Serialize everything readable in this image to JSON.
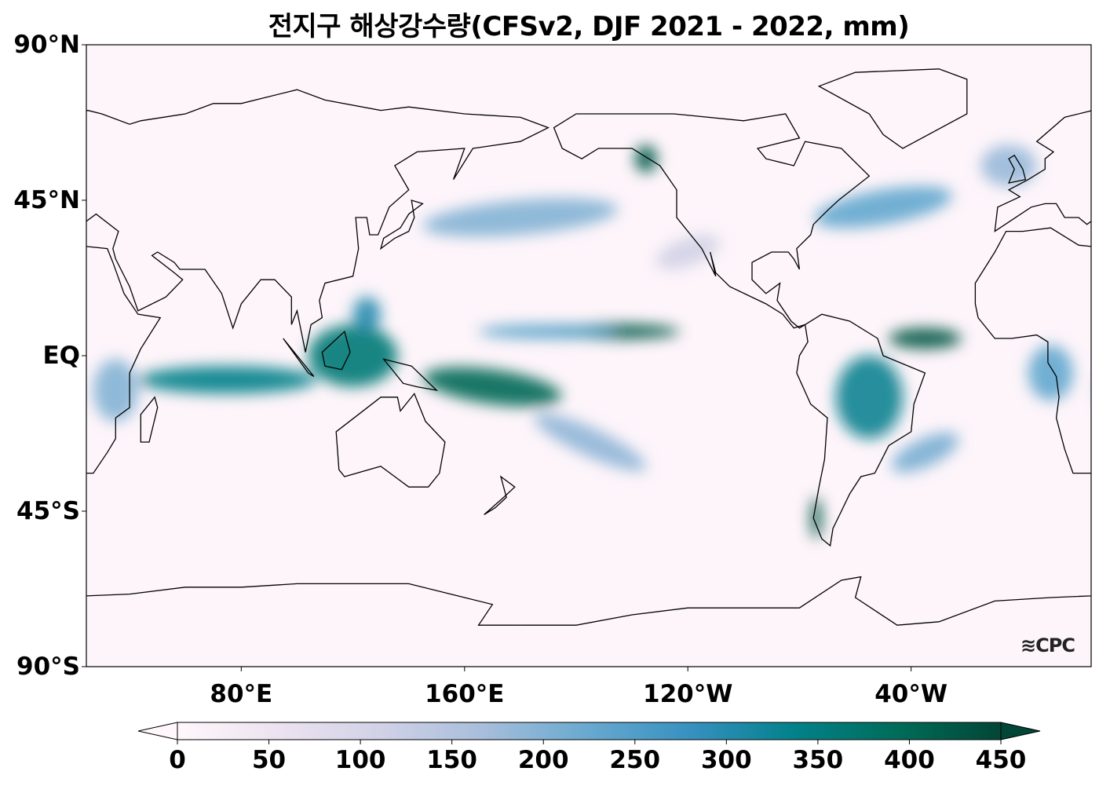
{
  "title": "전지구 해상강수량(CFSv2, DJF 2021 - 2022, mm)",
  "y_axis_labels": [
    "90°N",
    "45°N",
    "EQ",
    "45°S",
    "90°S"
  ],
  "y_axis_lats": [
    90,
    45,
    0,
    -45,
    -90
  ],
  "x_axis_labels": [
    "80°E",
    "160°E",
    "120°W",
    "40°W"
  ],
  "x_axis_lons": [
    80,
    160,
    240,
    320
  ],
  "map_extent": {
    "lon_min": 24.5,
    "lon_max": 384.5,
    "lat_min": -90,
    "lat_max": 90
  },
  "colorbar": {
    "ticks": [
      "0",
      "50",
      "100",
      "150",
      "200",
      "250",
      "300",
      "350",
      "400",
      "450"
    ],
    "min": 0,
    "max": 450,
    "extend": "both",
    "colors": [
      "#fff7fb",
      "#ece2f0",
      "#d0d1e6",
      "#a6bddb",
      "#67a9cf",
      "#3690c0",
      "#02818a",
      "#016c59",
      "#014636"
    ]
  },
  "logo": "CPC",
  "precip_features": [
    {
      "lon": 215,
      "lat": 7,
      "rlon": 22,
      "rlat": 2.2,
      "value": 420,
      "rot": 0
    },
    {
      "lon": 190,
      "lat": 7,
      "rlon": 25,
      "rlat": 2,
      "value": 250,
      "rot": 0
    },
    {
      "lon": 325,
      "lat": 5,
      "rlon": 13,
      "rlat": 3,
      "value": 430,
      "rot": 0
    },
    {
      "lon": 75,
      "lat": -7,
      "rlon": 32,
      "rlat": 4,
      "value": 340,
      "rot": 0
    },
    {
      "lon": 120,
      "lat": 0,
      "rlon": 16,
      "rlat": 9,
      "value": 360,
      "rot": 0
    },
    {
      "lon": 125,
      "lat": 12,
      "rlon": 5,
      "rlat": 5,
      "value": 300,
      "rot": 0
    },
    {
      "lon": 170,
      "lat": -9,
      "rlon": 25,
      "rlat": 5,
      "value": 400,
      "rot": 8
    },
    {
      "lon": 205,
      "lat": -25,
      "rlon": 22,
      "rlat": 4,
      "value": 190,
      "rot": 25
    },
    {
      "lon": 305,
      "lat": -12,
      "rlon": 12,
      "rlat": 12,
      "value": 330,
      "rot": 0
    },
    {
      "lon": 325,
      "lat": -28,
      "rlon": 13,
      "rlat": 4,
      "value": 210,
      "rot": -25
    },
    {
      "lon": 180,
      "lat": 40,
      "rlon": 35,
      "rlat": 5,
      "value": 200,
      "rot": -5
    },
    {
      "lon": 310,
      "lat": 43,
      "rlon": 25,
      "rlat": 5,
      "value": 230,
      "rot": -10
    },
    {
      "lon": 225,
      "lat": 57,
      "rlon": 4,
      "rlat": 4,
      "value": 420,
      "rot": 0
    },
    {
      "lon": 286,
      "lat": -47,
      "rlon": 2,
      "rlat": 6,
      "value": 430,
      "rot": 0
    },
    {
      "lon": 35,
      "lat": -10,
      "rlon": 8,
      "rlat": 9,
      "value": 200,
      "rot": 0
    },
    {
      "lon": 10,
      "lat": -5,
      "rlon": 8,
      "rlat": 8,
      "value": 230,
      "rot": 0
    },
    {
      "lon": 355,
      "lat": 55,
      "rlon": 10,
      "rlat": 6,
      "value": 180,
      "rot": 0
    },
    {
      "lon": 240,
      "lat": 30,
      "rlon": 12,
      "rlat": 4,
      "value": 110,
      "rot": -20
    }
  ]
}
